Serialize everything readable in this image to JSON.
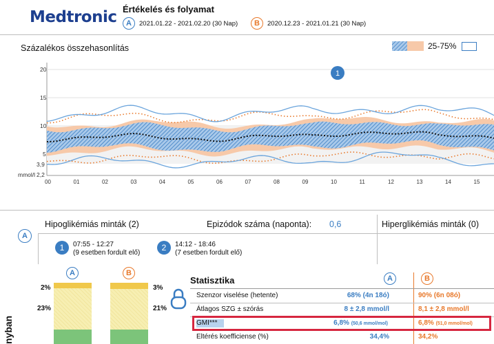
{
  "header": {
    "logo": "Medtronic",
    "title": "Értékelés és folyamat",
    "period_a": {
      "badge": "A",
      "text": "2021.01.22 - 2021.02.20 (30 Nap)"
    },
    "period_b": {
      "badge": "B",
      "text": "2020.12.23 - 2021.01.21 (30 Nap)"
    }
  },
  "comparison": {
    "title": "Százalékos összehasonlítás",
    "legend_label": "25-75%",
    "marker": "1",
    "y_unit": "mmol/l",
    "y_ticks": [
      "20",
      "15",
      "10",
      "5",
      "3,9",
      "2,2"
    ],
    "x_ticks": [
      "00",
      "01",
      "02",
      "03",
      "04",
      "05",
      "06",
      "07",
      "08",
      "09",
      "10",
      "11",
      "12",
      "13",
      "14",
      "15"
    ]
  },
  "patterns": {
    "badge": "A",
    "hypo_title": "Hipoglikémiás minták (2)",
    "episodes_label": "Epizódok száma (naponta):",
    "episodes_value": "0,6",
    "hyper_title": "Hiperglikémiás minták (0)",
    "items": [
      {
        "num": "1",
        "time": "07:55 - 12:27",
        "note": "(9 esetben fordult elő)"
      },
      {
        "num": "2",
        "time": "14:12 - 18:46",
        "note": "(7 esetben fordult elő)"
      }
    ]
  },
  "bars": {
    "side_label": "nyban",
    "badge_a": "A",
    "badge_b": "B",
    "a_top_pct": "2%",
    "a_mid_pct": "23%",
    "b_top_pct": "3%",
    "b_mid_pct": "21%",
    "colors": {
      "top": "#f0c84b",
      "mid": "#f7efb2",
      "bottom": "#7cc47a"
    }
  },
  "stats": {
    "title": "Statisztika",
    "badge_a": "A",
    "badge_b": "B",
    "rows": [
      {
        "label": "Szenzor viselése (hetente)",
        "a": "68% (4n 18ó)",
        "b": "90% (6n 08ó)"
      },
      {
        "label": "Átlagos SZG ± szórás",
        "a": "8 ± 2,8 mmol/l",
        "b": "8,1 ± 2,8 mmol/l"
      },
      {
        "label": "GMI***",
        "a": "6,8%",
        "a_sub": "(50,6 mmol/mol)",
        "b": "6,8%",
        "b_sub": "(51,0 mmol/mol)"
      },
      {
        "label": "Eltérés koefficiense (%)",
        "a": "34,4%",
        "b": "34,2%"
      }
    ]
  },
  "colors": {
    "blue": "#3a7dc2",
    "orange": "#e8782a",
    "highlight": "#d6263f"
  }
}
